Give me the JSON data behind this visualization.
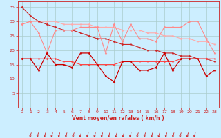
{
  "xlabel": "Vent moyen/en rafales ( km/h )",
  "bg_color": "#cceeff",
  "grid_color": "#aacccc",
  "ylim": [
    0,
    37
  ],
  "yticks": [
    5,
    10,
    15,
    20,
    25,
    30,
    35
  ],
  "xlim": [
    -0.5,
    23.5
  ],
  "line_diagonal_dark": {
    "color": "#cc2222",
    "values": [
      35,
      32,
      30,
      29,
      28,
      27,
      27,
      26,
      25,
      24,
      24,
      23,
      22,
      22,
      21,
      20,
      20,
      19,
      19,
      18,
      18,
      17,
      17,
      16
    ],
    "lw": 0.8
  },
  "line_diagonal_light": {
    "color": "#ffaaaa",
    "values": [
      29,
      30,
      30,
      30,
      30,
      29,
      29,
      29,
      29,
      28,
      28,
      28,
      27,
      27,
      27,
      26,
      26,
      25,
      25,
      24,
      24,
      23,
      23,
      22
    ],
    "lw": 0.8
  },
  "line_upper_jagged": {
    "color": "#ff8888",
    "values": [
      29,
      30,
      26,
      19,
      27,
      27,
      27,
      28,
      28,
      28,
      19,
      29,
      23,
      29,
      24,
      24,
      23,
      28,
      28,
      28,
      30,
      30,
      24,
      19
    ],
    "lw": 0.8
  },
  "line_lower_jagged": {
    "color": "#cc0000",
    "values": [
      17,
      17,
      13,
      19,
      15,
      15,
      14,
      19,
      19,
      15,
      11,
      9,
      16,
      16,
      13,
      13,
      14,
      19,
      13,
      17,
      17,
      17,
      11,
      13
    ],
    "lw": 0.9
  },
  "line_mid_smooth": {
    "color": "#ff4444",
    "values": [
      17,
      17,
      17,
      17,
      17,
      16,
      16,
      15,
      15,
      15,
      15,
      15,
      16,
      16,
      16,
      16,
      16,
      16,
      16,
      17,
      17,
      17,
      17,
      17
    ],
    "lw": 0.8
  },
  "arrow_color": "#cc2222",
  "tick_color": "#cc2222",
  "label_color": "#cc2222",
  "spine_color": "#cc2222"
}
